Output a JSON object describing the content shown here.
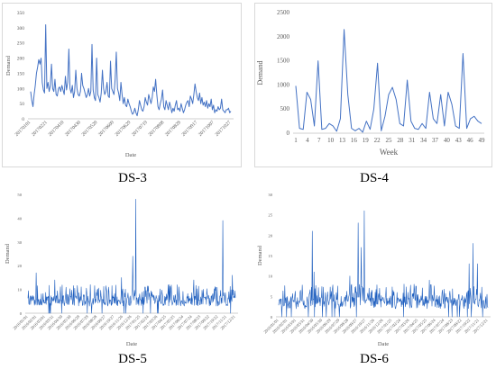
{
  "captions": {
    "ds3": "DS-3",
    "ds4": "DS-4",
    "ds5": "DS-5",
    "ds6": "DS-6"
  },
  "chart_data": [
    {
      "id": "ds3",
      "type": "line",
      "xlabel": "Date",
      "ylabel": "Demand",
      "ylim": [
        0,
        350
      ],
      "yticks": [
        0,
        50,
        100,
        150,
        200,
        250,
        300,
        350
      ],
      "xtick_labels": [
        "20170101",
        "20170221",
        "20170410",
        "20170430",
        "20170520",
        "20170609",
        "20170629",
        "20170719",
        "20170808",
        "20170828",
        "20170917",
        "20171007",
        "20171027"
      ],
      "color": "#4472c4",
      "grid": false,
      "values": [
        90,
        60,
        40,
        80,
        110,
        150,
        170,
        195,
        180,
        200,
        120,
        95,
        85,
        310,
        100,
        120,
        90,
        110,
        180,
        100,
        90,
        130,
        80,
        75,
        100,
        105,
        90,
        110,
        95,
        80,
        140,
        95,
        120,
        230,
        100,
        85,
        110,
        70,
        90,
        160,
        100,
        80,
        75,
        90,
        150,
        110,
        100,
        85,
        70,
        80,
        100,
        75,
        90,
        245,
        95,
        70,
        60,
        200,
        80,
        70,
        55,
        85,
        160,
        100,
        80,
        90,
        120,
        75,
        70,
        190,
        100,
        90,
        80,
        130,
        220,
        100,
        85,
        60,
        120,
        80,
        50,
        70,
        45,
        40,
        65,
        50,
        40,
        25,
        15,
        20,
        35,
        20,
        10,
        30,
        60,
        45,
        30,
        25,
        40,
        70,
        55,
        45,
        80,
        65,
        50,
        70,
        105,
        90,
        130,
        80,
        40,
        30,
        50,
        65,
        95,
        40,
        30,
        60,
        45,
        30,
        55,
        40,
        20,
        35,
        25,
        45,
        60,
        30,
        35,
        25,
        50,
        35,
        20,
        30,
        45,
        55,
        60,
        40,
        75,
        65,
        50,
        80,
        115,
        90,
        70,
        60,
        85,
        50,
        70,
        45,
        55,
        40,
        60,
        35,
        50,
        40,
        65,
        30,
        45,
        20,
        30,
        25,
        40,
        30,
        35,
        65,
        30,
        25,
        20,
        30,
        30,
        35,
        20,
        25
      ]
    },
    {
      "id": "ds4",
      "type": "line",
      "xlabel": "Week",
      "ylabel": "Demand",
      "ylim": [
        0,
        2500
      ],
      "yticks": [
        0,
        500,
        1000,
        1500,
        2000,
        2500
      ],
      "xtick_labels": [
        "1",
        "4",
        "7",
        "10",
        "13",
        "16",
        "19",
        "22",
        "25",
        "28",
        "31",
        "34",
        "37",
        "40",
        "43",
        "46",
        "49"
      ],
      "color": "#4472c4",
      "grid": false,
      "values": [
        980,
        100,
        80,
        850,
        700,
        150,
        1500,
        80,
        100,
        200,
        150,
        40,
        300,
        2150,
        800,
        100,
        50,
        100,
        20,
        250,
        80,
        500,
        1450,
        50,
        350,
        800,
        950,
        700,
        200,
        150,
        1100,
        250,
        100,
        80,
        200,
        100,
        850,
        300,
        200,
        800,
        150,
        850,
        600,
        150,
        100,
        1650,
        100,
        300,
        350,
        250,
        200
      ]
    },
    {
      "id": "ds5",
      "type": "line",
      "xlabel": "Date",
      "ylabel": "Demand",
      "ylim": [
        0,
        50
      ],
      "yticks": [
        0,
        10,
        20,
        30,
        40,
        50
      ],
      "xtick_labels": [
        "2016/01/01",
        "2016/02/01",
        "2016/03/01",
        "2016/03/31",
        "2016/04/30",
        "2016/05/30",
        "2016/06/29",
        "2016/07/29",
        "2016/08/28",
        "2016/09/27",
        "2016/10/27",
        "2016/11/26",
        "2016/12/26",
        "2017/01/25",
        "2017/02/24",
        "2017/03/26",
        "2017/04/25",
        "2017/05/25",
        "2017/06/24",
        "2017/07/24",
        "2017/08/23",
        "2017/09/22",
        "2017/10/22",
        "2017/11/21",
        "2017/12/21"
      ],
      "color": "#1f5fbf",
      "grid": false,
      "peaks": [
        {
          "x": 0.52,
          "y": 48
        },
        {
          "x": 0.505,
          "y": 24
        },
        {
          "x": 0.94,
          "y": 39
        },
        {
          "x": 0.04,
          "y": 17
        },
        {
          "x": 0.13,
          "y": 14
        },
        {
          "x": 0.45,
          "y": 15
        },
        {
          "x": 0.985,
          "y": 16
        },
        {
          "x": 0.3,
          "y": 12
        },
        {
          "x": 0.68,
          "y": 12
        },
        {
          "x": 0.8,
          "y": 14
        }
      ],
      "base": 3,
      "noise": 9,
      "n": 480,
      "seed": 5
    },
    {
      "id": "ds6",
      "type": "line",
      "xlabel": "Date",
      "ylabel": "Demand",
      "ylim": [
        0,
        30
      ],
      "yticks": [
        0,
        5,
        10,
        15,
        20,
        25,
        30
      ],
      "xtick_labels": [
        "2016/01/01",
        "2016/02/01",
        "2016/03/01",
        "2016/03/31",
        "2016/04/30",
        "2016/05/30",
        "2016/06/29",
        "2016/07/29",
        "2016/08/28",
        "2016/09/27",
        "2016/10/27",
        "2016/11/26",
        "2016/12/26",
        "2017/01/25",
        "2017/02/24",
        "2017/03/26",
        "2017/04/25",
        "2017/05/25",
        "2017/06/24",
        "2017/07/24",
        "2017/08/23",
        "2017/09/22",
        "2017/10/22",
        "2017/11/21",
        "2017/12/21"
      ],
      "color": "#1f5fbf",
      "grid": false,
      "peaks": [
        {
          "x": 0.16,
          "y": 21
        },
        {
          "x": 0.17,
          "y": 11
        },
        {
          "x": 0.38,
          "y": 23
        },
        {
          "x": 0.395,
          "y": 17
        },
        {
          "x": 0.41,
          "y": 26
        },
        {
          "x": 0.93,
          "y": 18
        },
        {
          "x": 0.95,
          "y": 13
        },
        {
          "x": 0.91,
          "y": 13
        },
        {
          "x": 0.34,
          "y": 10
        },
        {
          "x": 0.72,
          "y": 9
        },
        {
          "x": 0.6,
          "y": 8
        }
      ],
      "base": 2,
      "noise": 6,
      "n": 480,
      "seed": 11
    }
  ]
}
